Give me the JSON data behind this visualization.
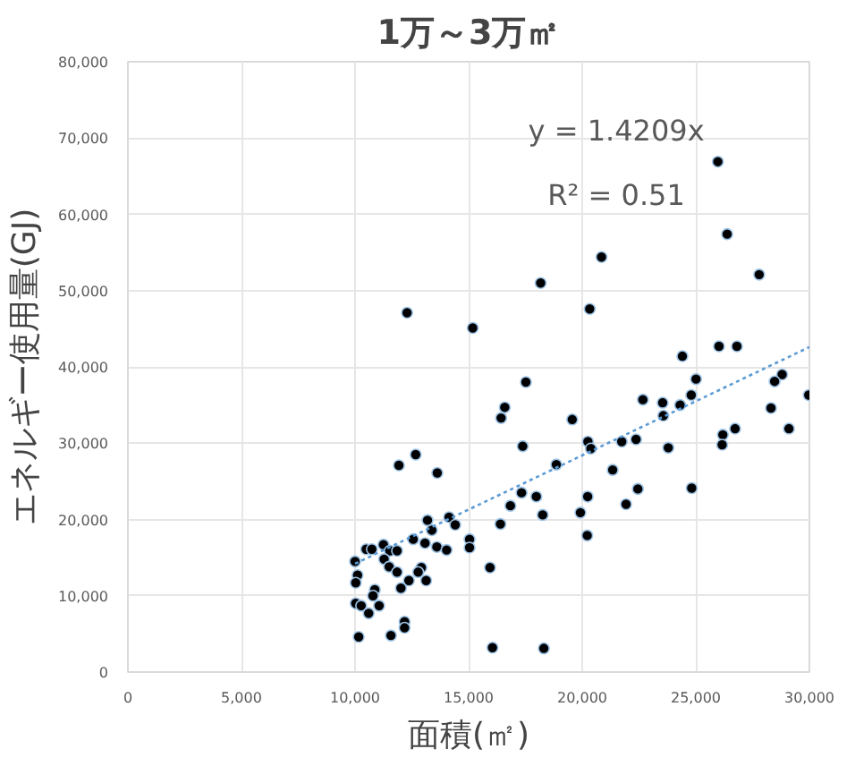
{
  "chart_data": {
    "type": "scatter",
    "title": "1万～3万㎡",
    "xlabel": "面積(㎡)",
    "ylabel": "エネルギー使用量(GJ)",
    "xlim": [
      0,
      30000
    ],
    "ylim": [
      0,
      80000
    ],
    "xticks": [
      {
        "value": 0,
        "label": "0"
      },
      {
        "value": 5000,
        "label": "5,000"
      },
      {
        "value": 10000,
        "label": "10,000"
      },
      {
        "value": 15000,
        "label": "15,000"
      },
      {
        "value": 20000,
        "label": "20,000"
      },
      {
        "value": 25000,
        "label": "25,000"
      },
      {
        "value": 30000,
        "label": "30,000"
      }
    ],
    "yticks": [
      {
        "value": 0,
        "label": "0"
      },
      {
        "value": 10000,
        "label": "10,000"
      },
      {
        "value": 20000,
        "label": "20,000"
      },
      {
        "value": 30000,
        "label": "30,000"
      },
      {
        "value": 40000,
        "label": "40,000"
      },
      {
        "value": 50000,
        "label": "50,000"
      },
      {
        "value": 60000,
        "label": "60,000"
      },
      {
        "value": 70000,
        "label": "70,000"
      },
      {
        "value": 80000,
        "label": "80,000"
      }
    ],
    "grid": true,
    "marker": "circle",
    "annotations": [
      "y = 1.4209x",
      "R² = 0.51"
    ],
    "series": [
      {
        "color": "#000000",
        "x": [
          25970,
          26380,
          27790,
          20850,
          18170,
          12290,
          20330,
          15180,
          26020,
          26810,
          24410,
          17520,
          25010,
          28800,
          28470,
          29970,
          16590,
          16430,
          19560,
          22670,
          23540,
          24800,
          24310,
          23570,
          28310,
          26730,
          26190,
          26160,
          29100,
          17380,
          20250,
          20380,
          21740,
          22370,
          23790,
          12670,
          11930,
          13620,
          18860,
          21340,
          17330,
          17980,
          16840,
          22450,
          24820,
          21930,
          20240,
          19920,
          18260,
          20220,
          16400,
          14140,
          13190,
          14410,
          13380,
          12560,
          13080,
          13600,
          14030,
          15040,
          15040,
          15940,
          11250,
          10490,
          10740,
          11530,
          11850,
          11280,
          10000,
          11500,
          11850,
          10110,
          10030,
          12370,
          13130,
          12920,
          12780,
          12020,
          10870,
          10790,
          10030,
          10270,
          11060,
          10600,
          12180,
          12180,
          11580,
          10160,
          16050,
          18310
        ],
        "values": [
          66900,
          57400,
          52100,
          54400,
          51000,
          47100,
          47600,
          45100,
          42700,
          42700,
          41400,
          38000,
          38400,
          39000,
          38100,
          36300,
          34700,
          33300,
          33100,
          35700,
          35300,
          36300,
          35000,
          33600,
          34600,
          31900,
          31100,
          29800,
          31900,
          29600,
          30200,
          29300,
          30200,
          30500,
          29400,
          28500,
          27100,
          26100,
          27200,
          26500,
          23500,
          23000,
          21800,
          24000,
          24100,
          22000,
          23000,
          20900,
          20600,
          17900,
          19400,
          20300,
          19900,
          19300,
          18600,
          17400,
          16900,
          16400,
          16000,
          17400,
          16300,
          13700,
          16700,
          16100,
          16100,
          15900,
          15900,
          14800,
          14500,
          13800,
          13100,
          12700,
          11700,
          12000,
          12000,
          13700,
          13100,
          11000,
          10800,
          10000,
          9000,
          8700,
          8700,
          7700,
          6600,
          5800,
          4800,
          4600,
          3200,
          3100
        ]
      },
      {
        "type": "line",
        "color": "#5b9bd5",
        "line_style": "dotted",
        "marker": "none",
        "x": [
          10000,
          30000
        ],
        "values": [
          14200,
          42600
        ]
      }
    ]
  }
}
